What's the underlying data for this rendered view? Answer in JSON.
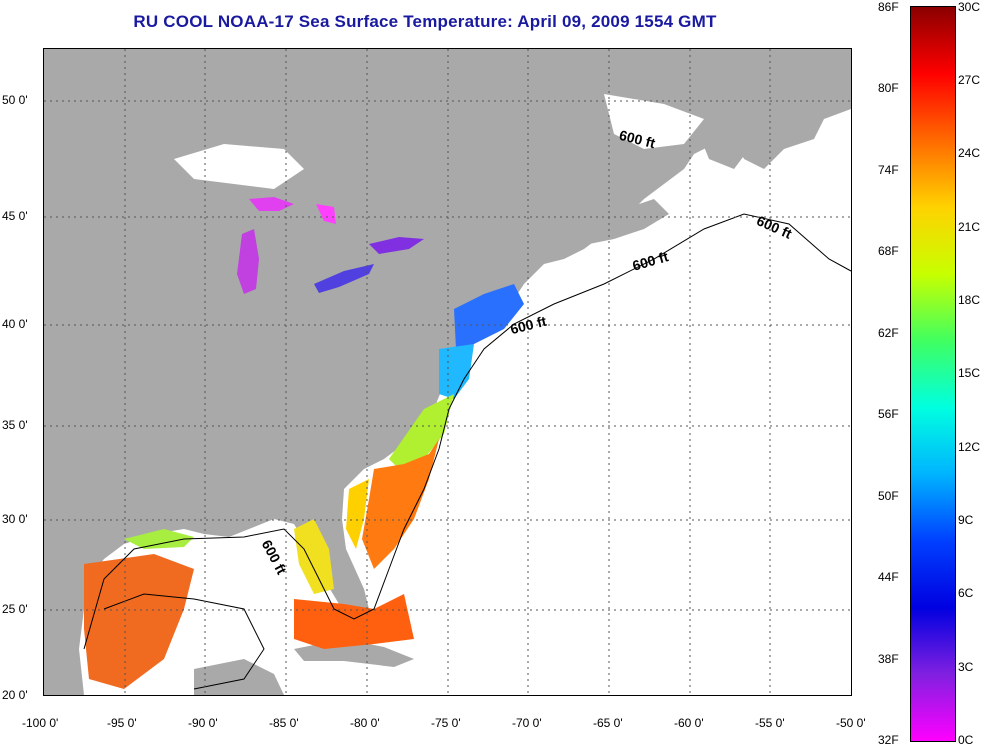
{
  "title": "RU COOL  NOAA-17  Sea Surface Temperature:  April 09, 2009 1554 GMT",
  "map": {
    "lon_labels": [
      "-100 0'",
      "-95 0'",
      "-90 0'",
      "-85 0'",
      "-80 0'",
      "-75 0'",
      "-70 0'",
      "-65 0'",
      "-60 0'",
      "-55 0'",
      "-50 0'"
    ],
    "lat_labels": [
      "50 0'",
      "45 0'",
      "40 0'",
      "35 0'",
      "30 0'",
      "25 0'",
      "20 0'"
    ],
    "depth_contour_label": "600 ft",
    "colors": {
      "land": "#a9a9a9",
      "ocean_cloud": "#ffffff",
      "grid": "#555555"
    }
  },
  "colorbar": {
    "fahrenheit": [
      "86F",
      "80F",
      "74F",
      "68F",
      "62F",
      "56F",
      "50F",
      "44F",
      "38F",
      "32F"
    ],
    "celsius": [
      "30C",
      "27C",
      "24C",
      "21C",
      "18C",
      "15C",
      "12C",
      "9C",
      "6C",
      "3C",
      "0C"
    ],
    "gradient": [
      "#8b0000",
      "#ff0000",
      "#ff6a00",
      "#ffd200",
      "#c8ff00",
      "#40ff60",
      "#00ffe0",
      "#00b4ff",
      "#0040ff",
      "#0000e0",
      "#8020e0",
      "#ff00ff"
    ]
  }
}
